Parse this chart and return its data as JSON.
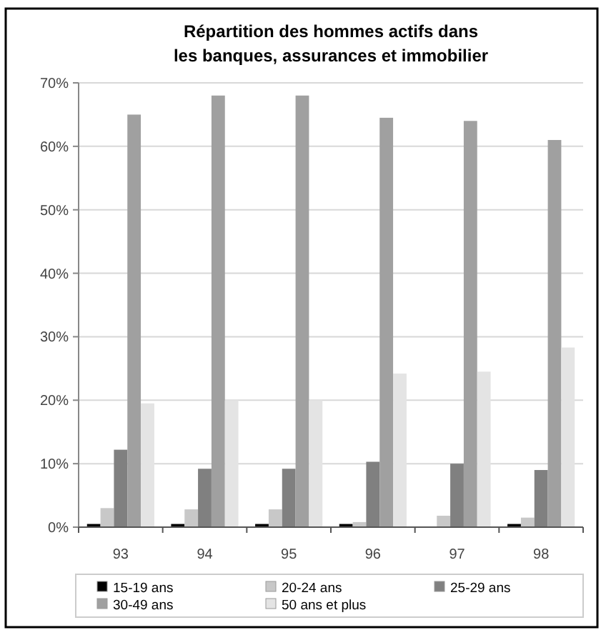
{
  "chart_data": {
    "type": "bar",
    "title": "Répartition des hommes actifs dans\nles banques, assurances et immobilier",
    "categories": [
      "93",
      "94",
      "95",
      "96",
      "97",
      "98"
    ],
    "series": [
      {
        "name": "15-19 ans",
        "color": "#000000",
        "values": [
          0.5,
          0.5,
          0.5,
          0.5,
          0,
          0.5
        ]
      },
      {
        "name": "20-24 ans",
        "color": "#c8c8c8",
        "values": [
          3,
          2.8,
          2.8,
          0.8,
          1.8,
          1.5
        ]
      },
      {
        "name": "25-29 ans",
        "color": "#808080",
        "values": [
          12.2,
          9.2,
          9.2,
          10.3,
          10,
          9
        ]
      },
      {
        "name": "30-49 ans",
        "color": "#a0a0a0",
        "values": [
          65,
          68,
          68,
          64.5,
          64,
          61
        ]
      },
      {
        "name": "50 ans et plus",
        "color": "#e4e4e4",
        "values": [
          19.5,
          20,
          20,
          24.2,
          24.5,
          28.3
        ]
      }
    ],
    "ylim": [
      0,
      70
    ],
    "yticks": [
      {
        "value": 0,
        "label": "0%"
      },
      {
        "value": 10,
        "label": "10%"
      },
      {
        "value": 20,
        "label": "20%"
      },
      {
        "value": 30,
        "label": "30%"
      },
      {
        "value": 40,
        "label": "40%"
      },
      {
        "value": 50,
        "label": "50%"
      },
      {
        "value": 60,
        "label": "60%"
      },
      {
        "value": 70,
        "label": "70%"
      }
    ],
    "grid": "y",
    "legend": "bottom"
  }
}
